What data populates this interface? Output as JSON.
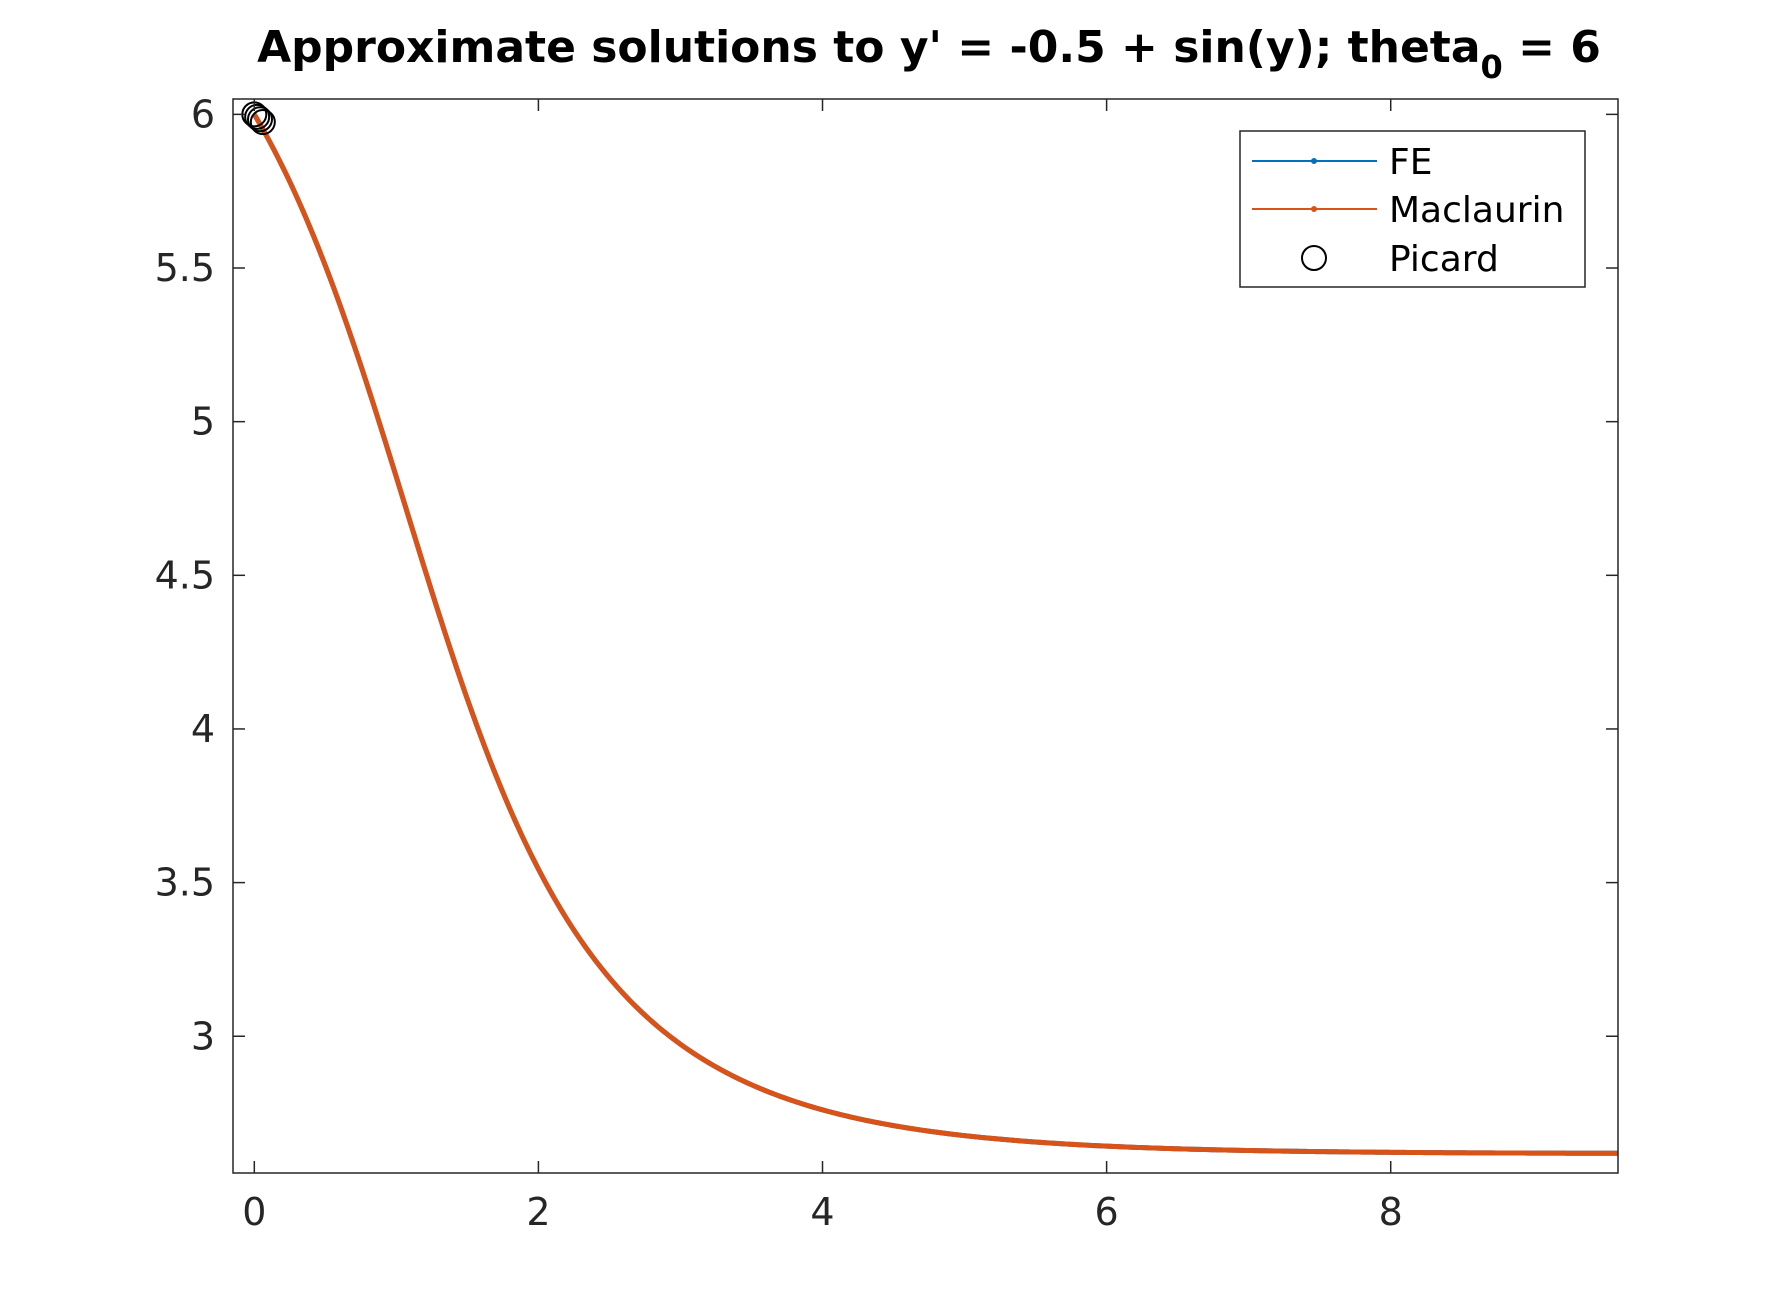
{
  "chart_data": {
    "type": "line",
    "title": {
      "main": "Approximate solutions to y' = -0.5 + sin(y);  theta",
      "subscript": "0",
      "suffix": " = 6"
    },
    "xlabel": "",
    "ylabel": "",
    "xlim": [
      -0.15,
      9.6
    ],
    "ylim": [
      2.555,
      6.05
    ],
    "x_ticks": [
      0,
      2,
      4,
      6,
      8
    ],
    "x_tick_labels": [
      "0",
      "2",
      "4",
      "6",
      "8"
    ],
    "y_ticks": [
      3,
      3.5,
      4,
      4.5,
      5,
      5.5,
      6
    ],
    "y_tick_labels": [
      "3",
      "3.5",
      "4",
      "4.5",
      "5",
      "5.5",
      "6"
    ],
    "grid": false,
    "legend_position": "top-right",
    "ode": {
      "a": -0.5,
      "y0": 6,
      "t_end": 9.6
    },
    "series": [
      {
        "name": "FE",
        "color": "#0072BD",
        "style": "line-dot"
      },
      {
        "name": "Maclaurin",
        "color": "#D95319",
        "style": "line-dot"
      },
      {
        "name": "Picard",
        "color": "#000000",
        "style": "circle",
        "points": [
          [
            0.0,
            6.0
          ],
          [
            0.02,
            5.992
          ],
          [
            0.04,
            5.984
          ],
          [
            0.06,
            5.975
          ]
        ]
      }
    ]
  }
}
